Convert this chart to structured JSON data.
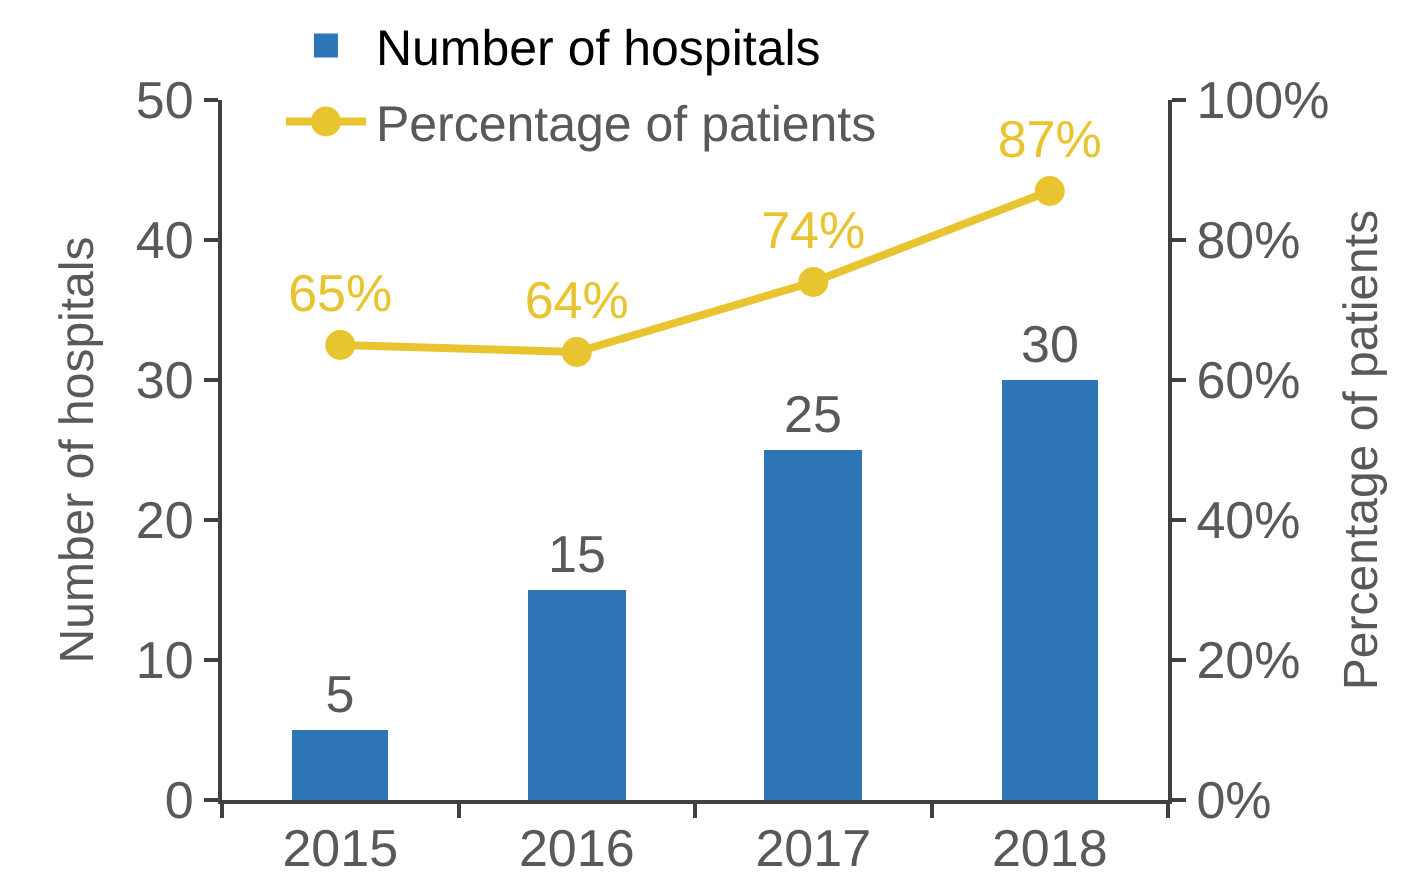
{
  "chart_data": {
    "type": "bar",
    "categories": [
      "2015",
      "2016",
      "2017",
      "2018"
    ],
    "ylabel": "Number of hospitals",
    "y2label": "Percentage of patients",
    "ylim": [
      0,
      50
    ],
    "yticks": [
      0,
      10,
      20,
      30,
      40,
      50
    ],
    "y2lim": [
      0,
      100
    ],
    "y2ticks": [
      {
        "value": 0,
        "label": "0%"
      },
      {
        "value": 20,
        "label": "20%"
      },
      {
        "value": 40,
        "label": "40%"
      },
      {
        "value": 60,
        "label": "60%"
      },
      {
        "value": 80,
        "label": "80%"
      },
      {
        "value": 100,
        "label": "100%"
      }
    ],
    "legend": "top left",
    "marker": "circle",
    "series": [
      {
        "name": "Number of hospitals",
        "color": "#2e75b6",
        "values": [
          5,
          15,
          25,
          30
        ],
        "value_labels": [
          "5",
          "15",
          "25",
          "30"
        ]
      },
      {
        "name": "Percentage of patients",
        "type": "line",
        "axis": "y2",
        "color": "#e8c530",
        "values": [
          65,
          64,
          74,
          87
        ],
        "value_labels": [
          "65%",
          "64%",
          "74%",
          "87%"
        ]
      }
    ]
  }
}
